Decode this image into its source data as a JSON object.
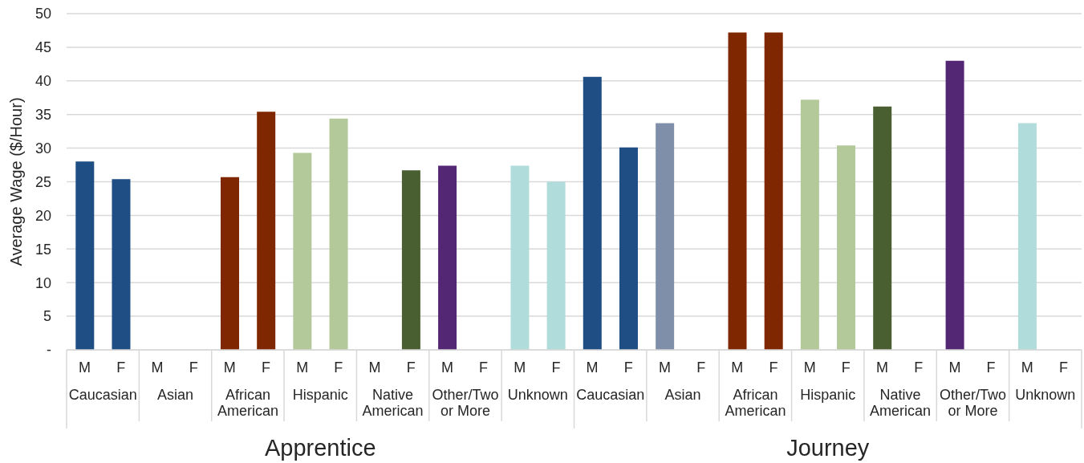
{
  "chart_data": {
    "type": "bar",
    "ylabel": "Average Wage ($/Hour)",
    "categories": [
      "M",
      "F",
      "M",
      "F",
      "M",
      "F",
      "M",
      "F",
      "M",
      "F",
      "M",
      "F",
      "M",
      "F",
      "M",
      "F",
      "M",
      "F",
      "M",
      "F",
      "M",
      "F",
      "M",
      "F",
      "M",
      "F",
      "M",
      "F"
    ],
    "values": [
      28.0,
      25.4,
      null,
      null,
      25.7,
      35.4,
      29.3,
      34.4,
      null,
      26.7,
      27.4,
      null,
      27.4,
      25.0,
      40.6,
      30.1,
      33.7,
      null,
      47.2,
      47.2,
      37.2,
      30.4,
      36.2,
      null,
      43.0,
      null,
      33.7,
      null
    ],
    "colors": [
      "#1f4e85",
      "#1f4e85",
      null,
      null,
      "#7f2700",
      "#7f2700",
      "#b4c99a",
      "#b4c99a",
      null,
      "#4a5f31",
      "#542775",
      null,
      "#b0dcdc",
      "#b0dcdc",
      "#1f4e85",
      "#1f4e85",
      "#7f8fa9",
      null,
      "#7f2700",
      "#7f2700",
      "#b4c99a",
      "#b4c99a",
      "#4a5f31",
      null,
      "#542775",
      null,
      "#b0dcdc",
      null
    ],
    "annotations": [
      "Caucasian",
      "Asian",
      "African American",
      "Hispanic",
      "Native American",
      "Other/Two or More",
      "Unknown",
      "Caucasian",
      "Asian",
      "African American",
      "Hispanic",
      "Native American",
      "Other/Two or More",
      "Unknown",
      "Apprentice",
      "Journey"
    ],
    "ylim": [
      0,
      50
    ],
    "yticks": [
      {
        "value": 0,
        "label": "-"
      },
      5,
      10,
      15,
      20,
      25,
      30,
      35,
      40,
      45,
      50
    ],
    "grid": "y"
  }
}
